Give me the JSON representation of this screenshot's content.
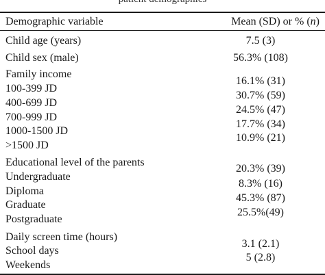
{
  "caption_fragment": "patient demographics",
  "table": {
    "header": {
      "col1": "Demographic variable",
      "col2_prefix": "Mean (SD) or % (",
      "col2_italic": "n",
      "col2_suffix": ")"
    },
    "rows": {
      "child_age": {
        "label": "Child age (years)",
        "value": "7.5 (3)"
      },
      "child_sex": {
        "label": "Child sex (male)",
        "value": "56.3% (108)"
      },
      "family_income": {
        "label": "Family income",
        "items": [
          {
            "label": "100-399 JD",
            "value": "16.1% (31)"
          },
          {
            "label": "400-699 JD",
            "value": "30.7% (59)"
          },
          {
            "label": "700-999 JD",
            "value": "24.5% (47)"
          },
          {
            "label": "1000-1500 JD",
            "value": "17.7% (34)"
          },
          {
            "label": ">1500 JD",
            "value": "10.9% (21)"
          }
        ]
      },
      "education": {
        "label": "Educational level of the parents",
        "items": [
          {
            "label": "Undergraduate",
            "value": "20.3% (39)"
          },
          {
            "label": "Diploma",
            "value": "8.3% (16)"
          },
          {
            "label": "Graduate",
            "value": "45.3% (87)"
          },
          {
            "label": "Postgraduate",
            "value": "25.5%(49)"
          }
        ]
      },
      "screen_time": {
        "label": "Daily screen time (hours)",
        "items": [
          {
            "label": "School days",
            "value": "3.1 (2.1)"
          },
          {
            "label": "Weekends",
            "value": "5 (2.8)"
          }
        ]
      }
    }
  }
}
